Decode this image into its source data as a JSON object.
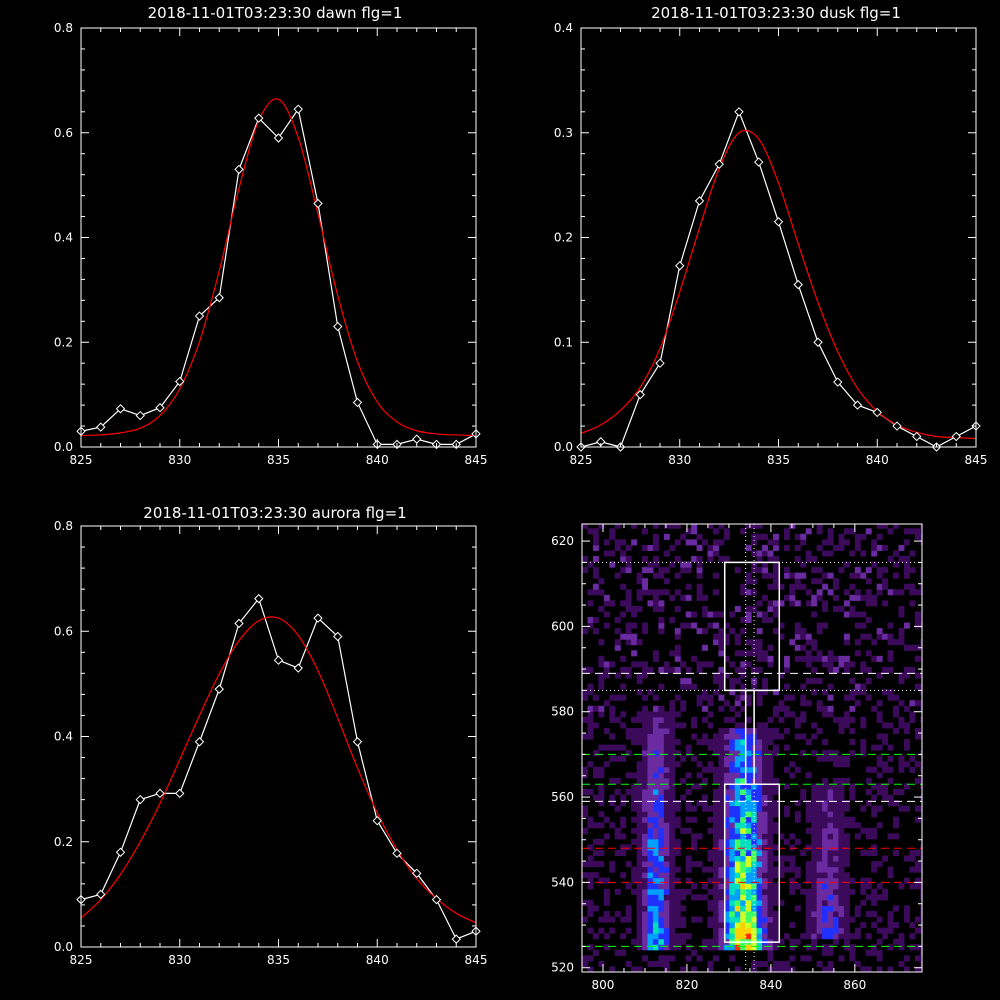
{
  "chart_data": [
    {
      "type": "line",
      "title": "2018-11-01T03:23:30 dawn flg=1",
      "xlim": [
        825,
        845
      ],
      "ylim": [
        0,
        0.8
      ],
      "xticks": [
        825,
        830,
        835,
        840,
        845
      ],
      "yticks": [
        0.0,
        0.2,
        0.4,
        0.6,
        0.8
      ],
      "xtick_labels": [
        "825",
        "830",
        "835",
        "840",
        "845"
      ],
      "ytick_labels": [
        "0.0",
        "0.2",
        "0.4",
        "0.6",
        "0.8"
      ],
      "grid": false,
      "series": [
        {
          "color": "#ffffff",
          "marker": "diamond",
          "x": [
            825,
            826,
            827,
            828,
            829,
            830,
            831,
            832,
            833,
            834,
            835,
            836,
            837,
            838,
            839,
            840,
            841,
            842,
            843,
            844,
            845
          ],
          "y": [
            0.03,
            0.038,
            0.073,
            0.06,
            0.075,
            0.125,
            0.25,
            0.285,
            0.53,
            0.628,
            0.59,
            0.645,
            0.465,
            0.23,
            0.085,
            0.005,
            0.005,
            0.015,
            0.005,
            0.005,
            0.025
          ]
        },
        {
          "color": "#ff0000",
          "fit": "gaussian",
          "x": [
            825,
            826,
            827,
            828,
            829,
            830,
            831,
            832,
            833,
            834,
            835,
            836,
            837,
            838,
            839,
            840,
            841,
            842,
            843,
            844,
            845
          ],
          "y": [
            0.022,
            0.023,
            0.027,
            0.036,
            0.06,
            0.111,
            0.201,
            0.336,
            0.494,
            0.623,
            0.664,
            0.591,
            0.445,
            0.289,
            0.163,
            0.086,
            0.048,
            0.031,
            0.025,
            0.023,
            0.022
          ]
        }
      ]
    },
    {
      "type": "line",
      "title": "2018-11-01T03:23:30 dusk flg=1",
      "xlim": [
        825,
        845
      ],
      "ylim": [
        0,
        0.4
      ],
      "xticks": [
        825,
        830,
        835,
        840,
        845
      ],
      "yticks": [
        0.0,
        0.1,
        0.2,
        0.3,
        0.4
      ],
      "xtick_labels": [
        "825",
        "830",
        "835",
        "840",
        "845"
      ],
      "ytick_labels": [
        "0.0",
        "0.1",
        "0.2",
        "0.3",
        "0.4"
      ],
      "grid": false,
      "series": [
        {
          "color": "#ffffff",
          "marker": "diamond",
          "x": [
            825,
            826,
            827,
            828,
            829,
            830,
            831,
            832,
            833,
            834,
            835,
            836,
            837,
            838,
            839,
            840,
            841,
            842,
            843,
            844,
            845
          ],
          "y": [
            0.0,
            0.005,
            0.0,
            0.05,
            0.08,
            0.173,
            0.235,
            0.27,
            0.32,
            0.272,
            0.215,
            0.155,
            0.1,
            0.062,
            0.04,
            0.033,
            0.02,
            0.01,
            0.0,
            0.01,
            0.02
          ]
        },
        {
          "color": "#ff0000",
          "fit": "gaussian",
          "x": [
            825,
            826,
            827,
            828,
            829,
            830,
            831,
            832,
            833,
            834,
            835,
            836,
            837,
            838,
            839,
            840,
            841,
            842,
            843,
            844,
            845
          ],
          "y": [
            0.013,
            0.021,
            0.035,
            0.057,
            0.094,
            0.148,
            0.209,
            0.266,
            0.3,
            0.294,
            0.252,
            0.194,
            0.138,
            0.091,
            0.056,
            0.034,
            0.021,
            0.014,
            0.01,
            0.009,
            0.008
          ]
        }
      ]
    },
    {
      "type": "line",
      "title": "2018-11-01T03:23:30 aurora flg=1",
      "xlim": [
        825,
        845
      ],
      "ylim": [
        0,
        0.8
      ],
      "xticks": [
        825,
        830,
        835,
        840,
        845
      ],
      "yticks": [
        0.0,
        0.2,
        0.4,
        0.6,
        0.8
      ],
      "xtick_labels": [
        "825",
        "830",
        "835",
        "840",
        "845"
      ],
      "ytick_labels": [
        "0.0",
        "0.2",
        "0.4",
        "0.6",
        "0.8"
      ],
      "grid": false,
      "series": [
        {
          "color": "#ffffff",
          "marker": "diamond",
          "x": [
            825,
            826,
            827,
            828,
            829,
            830,
            831,
            832,
            833,
            834,
            835,
            836,
            837,
            838,
            839,
            840,
            841,
            842,
            843,
            844,
            845
          ],
          "y": [
            0.09,
            0.1,
            0.18,
            0.28,
            0.292,
            0.292,
            0.39,
            0.49,
            0.615,
            0.662,
            0.545,
            0.53,
            0.625,
            0.59,
            0.39,
            0.24,
            0.178,
            0.14,
            0.09,
            0.015,
            0.03
          ]
        },
        {
          "color": "#ff0000",
          "fit": "gaussian",
          "x": [
            825,
            826,
            827,
            828,
            829,
            830,
            831,
            832,
            833,
            834,
            835,
            836,
            837,
            838,
            839,
            840,
            841,
            842,
            843,
            844,
            845
          ],
          "y": [
            0.055,
            0.09,
            0.138,
            0.2,
            0.273,
            0.356,
            0.44,
            0.519,
            0.582,
            0.62,
            0.625,
            0.592,
            0.525,
            0.435,
            0.34,
            0.255,
            0.185,
            0.13,
            0.092,
            0.064,
            0.046
          ]
        }
      ]
    },
    {
      "type": "heatmap",
      "title": "",
      "xlim": [
        795,
        876
      ],
      "ylim": [
        519,
        624
      ],
      "xticks": [
        800,
        820,
        840,
        860
      ],
      "yticks": [
        520,
        540,
        560,
        580,
        600,
        620
      ],
      "xtick_labels": [
        "800",
        "820",
        "840",
        "860"
      ],
      "ytick_labels": [
        "520",
        "540",
        "560",
        "580",
        "600",
        "620"
      ],
      "colormap": [
        "#000000",
        "#3c0a5a",
        "#6a2aa0",
        "#2030ff",
        "#00a0ff",
        "#00e0c0",
        "#40ff60",
        "#d0ff20",
        "#ffd000",
        "#ff3000"
      ],
      "bands": [
        {
          "x": 812,
          "width": 5,
          "y0": 524,
          "y1": 580,
          "peak": 0.55
        },
        {
          "x": 833,
          "width": 7,
          "y0": 524,
          "y1": 575,
          "peak": 0.95
        },
        {
          "x": 853,
          "width": 6,
          "y0": 526,
          "y1": 562,
          "peak": 0.35
        }
      ],
      "boxes": [
        {
          "x0": 829,
          "x1": 842,
          "y0": 585,
          "y1": 615,
          "color": "#ffffff"
        },
        {
          "x0": 829,
          "x1": 842,
          "y0": 526,
          "y1": 563,
          "color": "#ffffff"
        },
        {
          "x0": 834,
          "x1": 836,
          "y0": 563,
          "y1": 585,
          "color": "#ffffff"
        }
      ],
      "hlines": [
        {
          "y": 615,
          "color": "#ffffff",
          "style": "dotted"
        },
        {
          "y": 589,
          "color": "#ffffff",
          "style": "dashed"
        },
        {
          "y": 585,
          "color": "#ffffff",
          "style": "dotted"
        },
        {
          "y": 570,
          "color": "#00ff00",
          "style": "dashed"
        },
        {
          "y": 563,
          "color": "#00ff00",
          "style": "dashed"
        },
        {
          "y": 559,
          "color": "#ffffff",
          "style": "dashed"
        },
        {
          "y": 548,
          "color": "#ff0000",
          "style": "dashed"
        },
        {
          "y": 540,
          "color": "#ff0000",
          "style": "dashed"
        },
        {
          "y": 525,
          "color": "#00ff00",
          "style": "dashed"
        }
      ],
      "vlines": [
        {
          "x": 834,
          "color": "#ffffff",
          "style": "dotted"
        },
        {
          "x": 836,
          "color": "#ffffff",
          "style": "dotted"
        }
      ]
    }
  ]
}
